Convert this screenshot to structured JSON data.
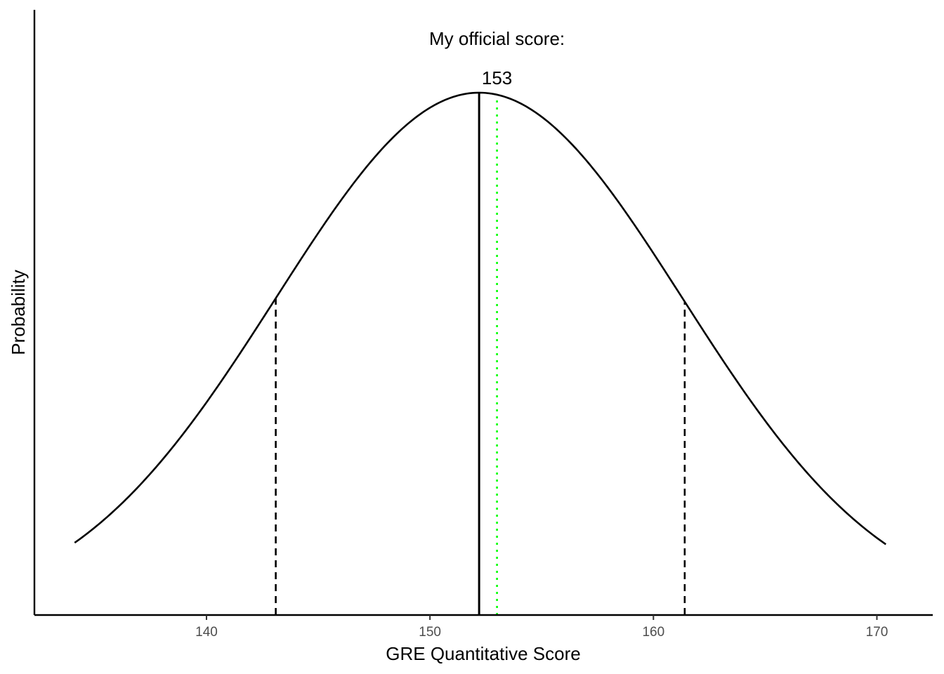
{
  "chart_data": {
    "type": "line",
    "xlabel": "GRE Quantitative Score",
    "ylabel": "Probability",
    "xlim": [
      132.3,
      172.5
    ],
    "x_ticks": [
      140,
      150,
      160,
      170
    ],
    "x_tick_labels": [
      "140",
      "150",
      "160",
      "170"
    ],
    "y_ticks_shown": false,
    "grid": false,
    "series": [
      {
        "kind": "normal_density",
        "mean": 152.2,
        "sd": 9.1,
        "x_range": [
          134.1,
          170.4
        ],
        "color": "#000000"
      }
    ],
    "reference_lines": [
      {
        "x": 152.2,
        "style": "solid",
        "color": "#000000"
      },
      {
        "x": 143.1,
        "style": "dashed",
        "color": "#000000"
      },
      {
        "x": 161.4,
        "style": "dashed",
        "color": "#000000"
      },
      {
        "x": 153,
        "style": "dotted",
        "color": "#00ff00"
      }
    ],
    "annotations": [
      {
        "text": "My official score:",
        "x": 153
      },
      {
        "text": "153",
        "x": 153
      }
    ]
  }
}
